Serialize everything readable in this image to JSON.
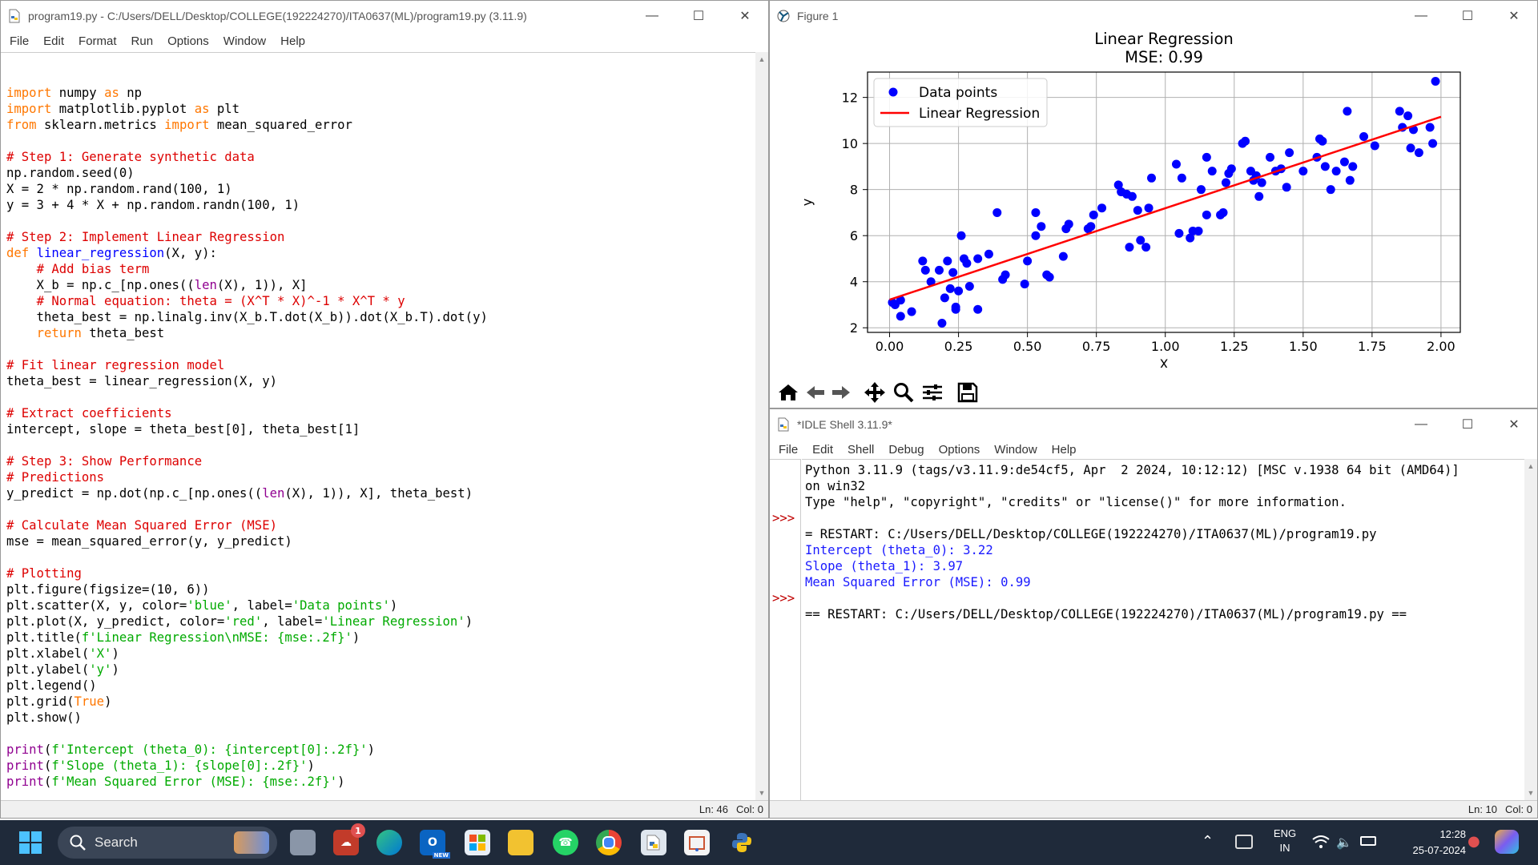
{
  "editor": {
    "title": "program19.py - C:/Users/DELL/Desktop/COLLEGE(192224270)/ITA0637(ML)/program19.py (3.11.9)",
    "menu": [
      "File",
      "Edit",
      "Format",
      "Run",
      "Options",
      "Window",
      "Help"
    ],
    "status_line": "Ln: 46",
    "status_col": "Col: 0"
  },
  "figure": {
    "title": "Figure 1",
    "toolbar_icons": [
      "home-icon",
      "back-icon",
      "forward-icon",
      "pan-icon",
      "zoom-icon",
      "configure-icon",
      "save-icon"
    ]
  },
  "chart_data": {
    "type": "scatter",
    "title": "Linear Regression",
    "subtitle": "MSE: 0.99",
    "xlabel": "X",
    "ylabel": "y",
    "xlim": [
      -0.08,
      2.07
    ],
    "ylim": [
      1.8,
      13.1
    ],
    "xticks": [
      "0.00",
      "0.25",
      "0.50",
      "0.75",
      "1.00",
      "1.25",
      "1.50",
      "1.75",
      "2.00"
    ],
    "yticks": [
      "2",
      "4",
      "6",
      "8",
      "10",
      "12"
    ],
    "grid": true,
    "legend_position": "top-left",
    "series": [
      {
        "name": "Data points",
        "color": "#0000ff",
        "x": [
          0.01,
          0.04,
          0.04,
          0.02,
          0.08,
          0.12,
          0.13,
          0.15,
          0.18,
          0.19,
          0.2,
          0.21,
          0.22,
          0.23,
          0.24,
          0.24,
          0.25,
          0.26,
          0.27,
          0.28,
          0.29,
          0.32,
          0.32,
          0.36,
          0.39,
          0.41,
          0.42,
          0.49,
          0.5,
          0.53,
          0.53,
          0.55,
          0.57,
          0.58,
          0.63,
          0.64,
          0.65,
          0.72,
          0.73,
          0.74,
          0.77,
          0.83,
          0.84,
          0.86,
          0.87,
          0.88,
          0.9,
          0.91,
          0.93,
          0.94,
          0.95,
          1.04,
          1.05,
          1.06,
          1.09,
          1.1,
          1.12,
          1.13,
          1.15,
          1.15,
          1.17,
          1.2,
          1.21,
          1.22,
          1.23,
          1.24,
          1.28,
          1.29,
          1.31,
          1.32,
          1.33,
          1.34,
          1.35,
          1.38,
          1.4,
          1.42,
          1.44,
          1.45,
          1.5,
          1.55,
          1.56,
          1.57,
          1.58,
          1.6,
          1.62,
          1.65,
          1.66,
          1.67,
          1.68,
          1.72,
          1.76,
          1.85,
          1.86,
          1.88,
          1.89,
          1.9,
          1.92,
          1.96,
          1.97,
          1.98
        ],
        "y": [
          3.1,
          2.5,
          3.2,
          3.0,
          2.7,
          4.9,
          4.5,
          4.0,
          4.5,
          2.2,
          3.3,
          4.9,
          3.7,
          4.4,
          2.8,
          2.9,
          3.6,
          6.0,
          5.0,
          4.8,
          3.8,
          2.8,
          5.0,
          5.2,
          7.0,
          4.1,
          4.3,
          3.9,
          4.9,
          6.0,
          7.0,
          6.4,
          4.3,
          4.2,
          5.1,
          6.3,
          6.5,
          6.3,
          6.4,
          6.9,
          7.2,
          8.2,
          7.9,
          7.8,
          5.5,
          7.7,
          7.1,
          5.8,
          5.5,
          7.2,
          8.5,
          9.1,
          6.1,
          8.5,
          5.9,
          6.2,
          6.2,
          8.0,
          6.9,
          9.4,
          8.8,
          6.9,
          7.0,
          8.3,
          8.7,
          8.9,
          10.0,
          10.1,
          8.8,
          8.4,
          8.6,
          7.7,
          8.3,
          9.4,
          8.8,
          8.9,
          8.1,
          9.6,
          8.8,
          9.4,
          10.2,
          10.1,
          9.0,
          8.0,
          8.8,
          9.2,
          11.4,
          8.4,
          9.0,
          10.3,
          9.9,
          11.4,
          10.7,
          11.2,
          9.8,
          10.6,
          9.6,
          10.7,
          10.0,
          12.7
        ]
      },
      {
        "name": "Linear Regression",
        "color": "#ff0000",
        "x": [
          0.0,
          2.0
        ],
        "y": [
          3.22,
          11.16
        ]
      }
    ]
  },
  "shell": {
    "title": "*IDLE Shell 3.11.9*",
    "menu": [
      "File",
      "Edit",
      "Shell",
      "Debug",
      "Options",
      "Window",
      "Help"
    ],
    "lines": [
      {
        "prompt": "",
        "text": "Python 3.11.9 (tags/v3.11.9:de54cf5, Apr  2 2024, 10:12:12) [MSC v.1938 64 bit (AMD64)]",
        "cls": ""
      },
      {
        "prompt": "",
        "text": "on win32",
        "cls": ""
      },
      {
        "prompt": "",
        "text": "Type \"help\", \"copyright\", \"credits\" or \"license()\" for more information.",
        "cls": ""
      },
      {
        "prompt": ">>>",
        "text": "",
        "cls": ""
      },
      {
        "prompt": "",
        "text": "= RESTART: C:/Users/DELL/Desktop/COLLEGE(192224270)/ITA0637(ML)/program19.py",
        "cls": ""
      },
      {
        "prompt": "",
        "text": "Intercept (theta_0): 3.22",
        "cls": "out"
      },
      {
        "prompt": "",
        "text": "Slope (theta_1): 3.97",
        "cls": "out"
      },
      {
        "prompt": "",
        "text": "Mean Squared Error (MSE): 0.99",
        "cls": "out"
      },
      {
        "prompt": ">>>",
        "text": "",
        "cls": ""
      },
      {
        "prompt": "",
        "text": "== RESTART: C:/Users/DELL/Desktop/COLLEGE(192224270)/ITA0637(ML)/program19.py ==",
        "cls": ""
      }
    ],
    "status_line": "Ln: 10",
    "status_col": "Col: 0"
  },
  "taskbar": {
    "search_label": "Search",
    "lang_top": "ENG",
    "lang_bottom": "IN",
    "time": "12:28",
    "date": "25-07-2024",
    "notification_badge": "1",
    "outlook_badge": "NEW"
  },
  "colors": {
    "keyword": "#ff7700",
    "comment": "#dd0000",
    "string": "#00aa00",
    "builtin": "#900090",
    "definition": "#0000ff",
    "taskbar": "#1f2a3a"
  }
}
